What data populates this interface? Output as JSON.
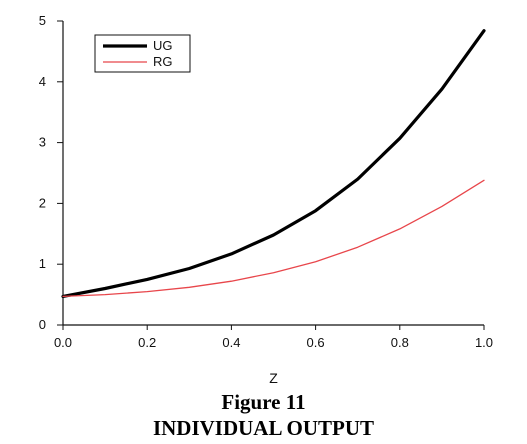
{
  "chart_data": {
    "type": "line",
    "xlabel": "Z",
    "ylabel": "",
    "xlim": [
      0.0,
      1.0
    ],
    "ylim": [
      0,
      5
    ],
    "x_ticks": [
      "0.0",
      "0.2",
      "0.4",
      "0.6",
      "0.8",
      "1.0"
    ],
    "y_ticks": [
      "0",
      "1",
      "2",
      "3",
      "4",
      "5"
    ],
    "grid": false,
    "legend_position": "top-left",
    "x": [
      0.0,
      0.1,
      0.2,
      0.3,
      0.4,
      0.5,
      0.6,
      0.7,
      0.8,
      0.9,
      1.0
    ],
    "series": [
      {
        "name": "UG",
        "color": "#000000",
        "values": [
          0.47,
          0.6,
          0.75,
          0.93,
          1.17,
          1.48,
          1.88,
          2.4,
          3.07,
          3.88,
          4.84
        ]
      },
      {
        "name": "RG",
        "color": "#e8464b",
        "values": [
          0.47,
          0.5,
          0.55,
          0.62,
          0.72,
          0.86,
          1.04,
          1.28,
          1.58,
          1.95,
          2.38
        ]
      }
    ]
  },
  "caption": {
    "number": "Figure 11",
    "title": "INDIVIDUAL OUTPUT"
  }
}
